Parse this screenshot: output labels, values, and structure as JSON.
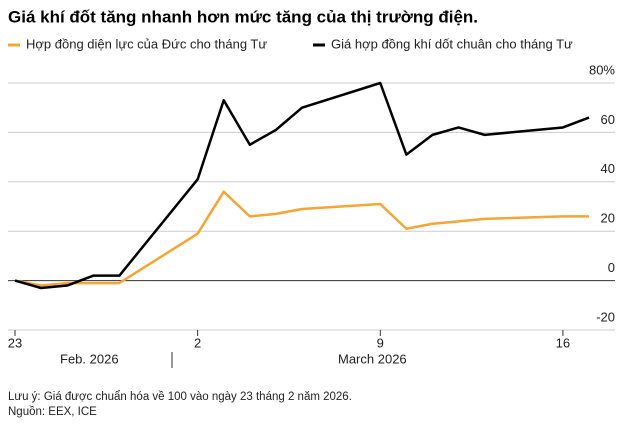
{
  "chart_data": {
    "type": "line",
    "title": "Giá khí đốt tăng nhanh hơn mức tăng của thị trường điện.",
    "x": [
      "2026-02-23",
      "2026-02-24",
      "2026-02-25",
      "2026-02-26",
      "2026-02-27",
      "2026-03-02",
      "2026-03-03",
      "2026-03-04",
      "2026-03-05",
      "2026-03-06",
      "2026-03-09",
      "2026-03-10",
      "2026-03-11",
      "2026-03-12",
      "2026-03-13",
      "2026-03-16",
      "2026-03-17"
    ],
    "series": [
      {
        "name": "Hợp đồng diện lực của Đức cho tháng Tư",
        "color": "#f5a536",
        "values": [
          0,
          -2,
          -1,
          -1,
          -1,
          19,
          36,
          26,
          27,
          29,
          31,
          21,
          23,
          24,
          25,
          26,
          26
        ]
      },
      {
        "name": "Giá hợp đồng khí dốt chuân cho tháng Tư",
        "color": "#000000",
        "values": [
          0,
          -3,
          -2,
          2,
          2,
          41,
          73,
          55,
          61,
          70,
          80,
          51,
          59,
          62,
          59,
          62,
          66
        ]
      }
    ],
    "xlim": [
      "2026-02-23",
      "2026-03-17"
    ],
    "xticks": [
      {
        "value": "2026-02-23",
        "label": "23"
      },
      {
        "value": "2026-03-02",
        "label": "2"
      },
      {
        "value": "2026-03-09",
        "label": "9"
      },
      {
        "value": "2026-03-16",
        "label": "16"
      }
    ],
    "x_group_labels": [
      "Feb. 2026",
      "March 2026"
    ],
    "ylim": [
      -20,
      80
    ],
    "yticks": [
      {
        "value": 80,
        "label": "80%"
      },
      60,
      40,
      20,
      0,
      -20
    ],
    "grid": true,
    "note": "Lưu ý: Giá được chuẩn hóa về 100 vào ngày 23 tháng 2 năm 2026.",
    "source": "Nguồn: EEX, ICE"
  }
}
